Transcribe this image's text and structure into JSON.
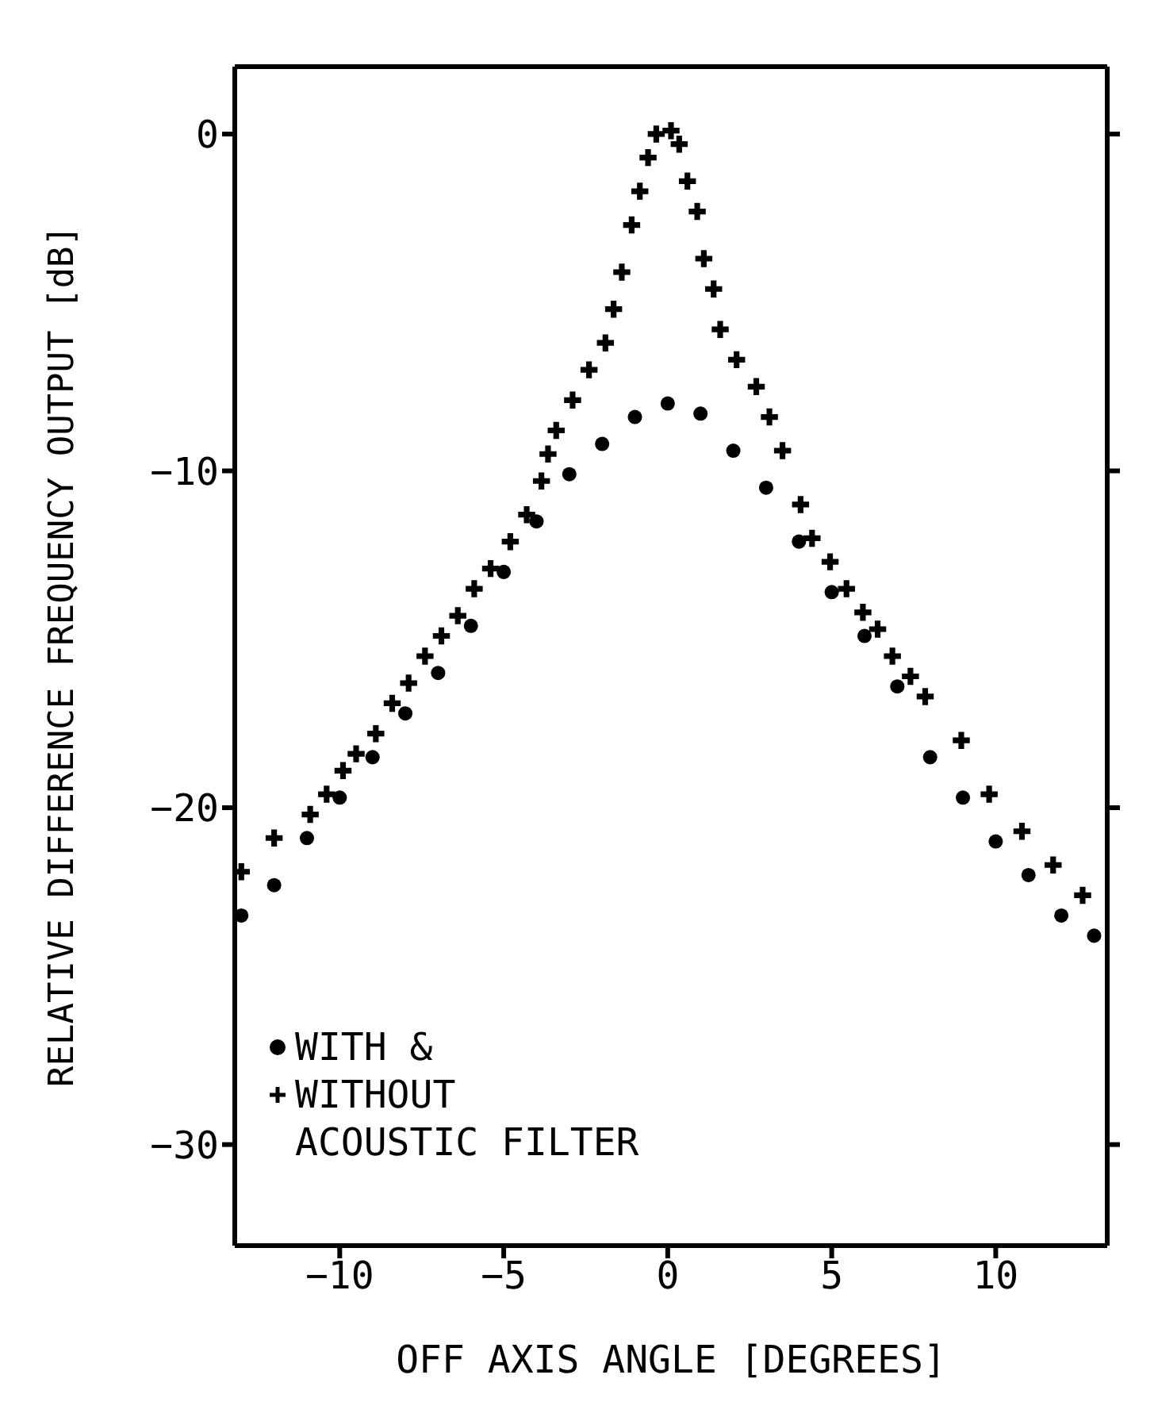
{
  "chart_data": {
    "type": "scatter",
    "xlabel": "OFF AXIS ANGLE  [DEGREES]",
    "ylabel": "RELATIVE DIFFERENCE FREQUENCY OUTPUT [dB]",
    "xlim": [
      -13.2,
      13.4
    ],
    "ylim": [
      -33,
      2
    ],
    "xticks": [
      -10,
      -5,
      0,
      5,
      10
    ],
    "yticks": [
      0,
      -10,
      -20,
      -30
    ],
    "grid": false,
    "legend": "bottom left",
    "annotations": [
      "ACOUSTIC FILTER"
    ],
    "series": [
      {
        "name": "WITH &",
        "color": "#000000",
        "marker": "circle",
        "x": [
          -13,
          -12,
          -11,
          -10,
          -9,
          -8,
          -7,
          -6,
          -5,
          -4,
          -3,
          -2,
          -1,
          0,
          1,
          2,
          3,
          4,
          5,
          6,
          7,
          8,
          9,
          10,
          11,
          12,
          13
        ],
        "values": [
          -23.2,
          -22.3,
          -20.9,
          -19.7,
          -18.5,
          -17.2,
          -16.0,
          -14.6,
          -13.0,
          -11.5,
          -10.1,
          -9.2,
          -8.4,
          -8.0,
          -8.3,
          -9.4,
          -10.5,
          -12.1,
          -13.6,
          -14.9,
          -16.4,
          -18.5,
          -19.7,
          -21.0,
          -22.0,
          -23.2,
          -23.8
        ]
      },
      {
        "name": "WITHOUT",
        "color": "#000000",
        "marker": "cross",
        "x": [
          -13,
          -12.0,
          -10.9,
          -10.4,
          -9.9,
          -9.5,
          -8.9,
          -8.4,
          -7.9,
          -7.4,
          -6.9,
          -6.4,
          -5.9,
          -5.4,
          -4.8,
          -4.3,
          -3.85,
          -3.65,
          -3.4,
          -2.9,
          -2.4,
          -1.9,
          -1.65,
          -1.4,
          -1.1,
          -0.85,
          -0.6,
          -0.35,
          0.1,
          0.35,
          0.6,
          0.9,
          1.1,
          1.4,
          1.6,
          2.1,
          2.7,
          3.1,
          3.5,
          4.05,
          4.4,
          4.95,
          5.45,
          5.95,
          6.4,
          6.85,
          7.4,
          7.85,
          8.95,
          9.8,
          10.8,
          11.75,
          12.65
        ],
        "values": [
          -21.9,
          -20.9,
          -20.2,
          -19.6,
          -18.9,
          -18.4,
          -17.8,
          -16.9,
          -16.3,
          -15.5,
          -14.9,
          -14.3,
          -13.5,
          -12.9,
          -12.1,
          -11.3,
          -10.3,
          -9.5,
          -8.8,
          -7.9,
          -7.0,
          -6.2,
          -5.2,
          -4.1,
          -2.7,
          -1.7,
          -0.7,
          0.0,
          0.1,
          -0.3,
          -1.4,
          -2.3,
          -3.7,
          -4.6,
          -5.8,
          -6.7,
          -7.5,
          -8.4,
          -9.4,
          -11.0,
          -12.0,
          -12.7,
          -13.5,
          -14.2,
          -14.7,
          -15.5,
          -16.1,
          -16.7,
          -18.0,
          -19.6,
          -20.7,
          -21.7,
          -22.6
        ]
      }
    ]
  }
}
